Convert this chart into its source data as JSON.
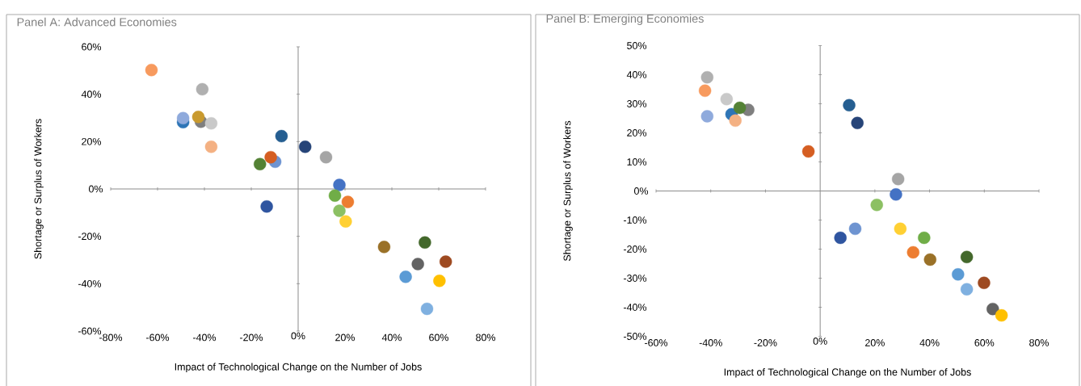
{
  "chart_data": [
    {
      "type": "scatter",
      "title": "Panel A: Advanced Economies",
      "xlabel": "Impact of Technological Change on the Number of Jobs",
      "ylabel": "Shortage or Surplus of Workers",
      "marker": "circle",
      "x": [
        -62.6,
        -40.9,
        -49.1,
        -49.1,
        -41.5,
        -42.6,
        -37.1,
        -37.1,
        -7.1,
        -9.8,
        -11.7,
        -16.3,
        3.0,
        11.9,
        -13.4,
        17.6,
        15.7,
        21.2,
        17.6,
        20.3,
        36.7,
        54.1,
        51.1,
        63.0,
        45.9,
        60.3,
        55.0
      ],
      "values": [
        50.2,
        42.1,
        28.2,
        29.9,
        28.4,
        30.4,
        27.7,
        17.8,
        22.3,
        11.5,
        13.4,
        10.5,
        17.8,
        13.4,
        -7.4,
        1.7,
        -2.8,
        -5.5,
        -9.2,
        -13.7,
        -24.5,
        -22.6,
        -31.7,
        -30.7,
        -37.1,
        -38.8,
        -50.6
      ],
      "colors": [
        "#f79a5e",
        "#b0b0b0",
        "#2e75b6",
        "#8faadc",
        "#7f7f7f",
        "#c99a2e",
        "#c9c9c9",
        "#f4b183",
        "#255e91",
        "#6e94d1",
        "#d55e22",
        "#548235",
        "#264478",
        "#a5a5a5",
        "#2f55a0",
        "#4472c4",
        "#70ad47",
        "#ed7d31",
        "#8cc063",
        "#ffd033",
        "#9a7128",
        "#43682b",
        "#636363",
        "#9e4a21",
        "#5b9bd5",
        "#ffc000",
        "#7fb0e0"
      ],
      "xlim": [
        -80,
        80
      ],
      "ylim": [
        -60,
        60
      ],
      "xticks": [
        {
          "value": -80,
          "label": "-80%"
        },
        {
          "value": -60,
          "label": "-60%"
        },
        {
          "value": -40,
          "label": "-40%"
        },
        {
          "value": -20,
          "label": "-20%"
        },
        {
          "value": 0,
          "label": "0%"
        },
        {
          "value": 20,
          "label": "20%"
        },
        {
          "value": 40,
          "label": "40%"
        },
        {
          "value": 60,
          "label": "60%"
        },
        {
          "value": 80,
          "label": "80%"
        }
      ],
      "yticks": [
        {
          "value": -60,
          "label": "-60%"
        },
        {
          "value": -40,
          "label": "-40%"
        },
        {
          "value": -20,
          "label": "-20%"
        },
        {
          "value": 0,
          "label": "0%"
        },
        {
          "value": 20,
          "label": "20%"
        },
        {
          "value": 40,
          "label": "40%"
        },
        {
          "value": 60,
          "label": "60%"
        }
      ]
    },
    {
      "type": "scatter",
      "title": "Panel B: Emerging Economies",
      "xlabel": "Impact of Technological Change on the Number of Jobs",
      "ylabel": "Shortage or Surplus of Workers",
      "marker": "circle",
      "x": [
        -41.3,
        -42.1,
        -34.2,
        -32.4,
        -26.3,
        -29.4,
        -41.3,
        -31.0,
        10.6,
        13.6,
        -4.3,
        28.5,
        27.7,
        20.7,
        7.4,
        12.8,
        29.3,
        38.0,
        34.0,
        40.2,
        53.6,
        50.4,
        53.6,
        59.9,
        63.1,
        66.3
      ],
      "values": [
        39.1,
        34.5,
        31.6,
        26.4,
        27.9,
        28.6,
        25.7,
        24.2,
        29.5,
        23.4,
        13.6,
        4.1,
        -1.2,
        -4.8,
        -16.1,
        -13.0,
        -13.0,
        -16.1,
        -21.1,
        -23.6,
        -22.7,
        -28.7,
        -33.8,
        -31.6,
        -40.6,
        -42.8
      ],
      "colors": [
        "#b0b0b0",
        "#f79a5e",
        "#c9c9c9",
        "#2e75b6",
        "#7f7f7f",
        "#548235",
        "#8faadc",
        "#f4b183",
        "#255e91",
        "#264478",
        "#d55e22",
        "#a5a5a5",
        "#4472c4",
        "#8cc063",
        "#2f55a0",
        "#6e94d1",
        "#ffd033",
        "#70ad47",
        "#ed7d31",
        "#9a7128",
        "#43682b",
        "#5b9bd5",
        "#7fb0e0",
        "#9e4a21",
        "#636363",
        "#ffc000"
      ],
      "xlim": [
        -60,
        80
      ],
      "ylim": [
        -50,
        50
      ],
      "xticks": [
        {
          "value": -60,
          "label": "-60%"
        },
        {
          "value": -40,
          "label": "-40%"
        },
        {
          "value": -20,
          "label": "-20%"
        },
        {
          "value": 0,
          "label": "0%"
        },
        {
          "value": 20,
          "label": "20%"
        },
        {
          "value": 40,
          "label": "40%"
        },
        {
          "value": 60,
          "label": "60%"
        },
        {
          "value": 80,
          "label": "80%"
        }
      ],
      "yticks": [
        {
          "value": -50,
          "label": "-50%"
        },
        {
          "value": -40,
          "label": "-40%"
        },
        {
          "value": -30,
          "label": "-30%"
        },
        {
          "value": -20,
          "label": "-20%"
        },
        {
          "value": -10,
          "label": "-10%"
        },
        {
          "value": 0,
          "label": "0%"
        },
        {
          "value": 10,
          "label": "10%"
        },
        {
          "value": 20,
          "label": "20%"
        },
        {
          "value": 30,
          "label": "30%"
        },
        {
          "value": 40,
          "label": "40%"
        },
        {
          "value": 50,
          "label": "50%"
        }
      ]
    }
  ]
}
